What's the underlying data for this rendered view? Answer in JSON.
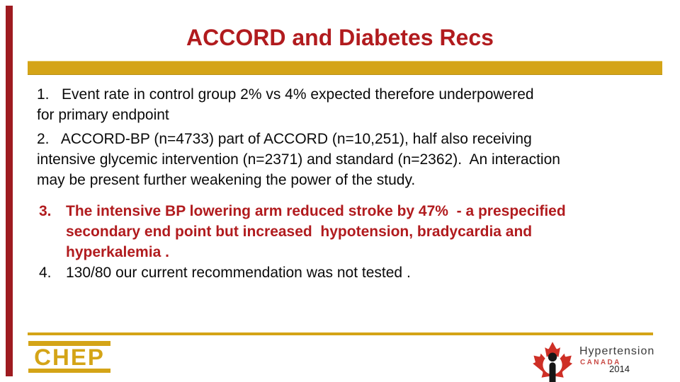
{
  "slide": {
    "title": "ACCORD and Diabetes Recs"
  },
  "colors": {
    "accent_red": "#B11B1E",
    "gold": "#D4A417",
    "left_bar_red": "#9E1B20",
    "body_text": "#0A0A0A",
    "leaf_red": "#CE2F26",
    "canada_red": "#C94A45",
    "hyper_gray": "#3A3A3A"
  },
  "items": [
    {
      "number": "1.",
      "style": "normal",
      "layout": "flow",
      "lines": [
        "1.   Event rate in control group 2% vs 4% expected therefore underpowered",
        "for primary endpoint"
      ]
    },
    {
      "number": "2.",
      "style": "normal",
      "layout": "flow",
      "lines": [
        "2.   ACCORD-BP (n=4733) part of ACCORD (n=10,251), half also receiving",
        "intensive glycemic intervention (n=2371) and standard (n=2362).  An interaction",
        "may be present further weakening the power of the study."
      ]
    },
    {
      "number": "3.",
      "style": "red-bold",
      "layout": "hanging",
      "lines": [
        "The intensive BP lowering arm reduced stroke by 47%  - a prespecified",
        "secondary end point but increased  hypotension, bradycardia and",
        "hyperkalemia ."
      ]
    },
    {
      "number": "4.",
      "style": "normal",
      "layout": "hanging",
      "lines": [
        "130/80 our current recommendation was not tested ."
      ]
    }
  ],
  "footer": {
    "chep_label": "CHEP",
    "hypertension_wordmark": "Hypertension",
    "canada_wordmark": "CANADA",
    "year": "2014"
  }
}
